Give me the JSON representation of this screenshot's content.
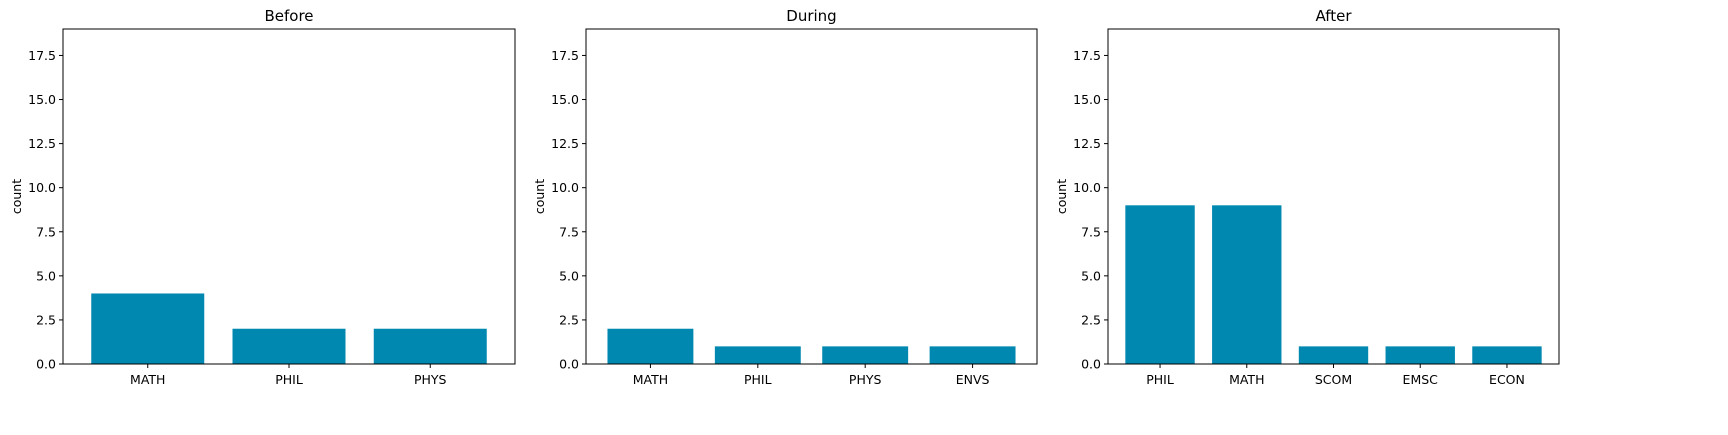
{
  "chart_data": [
    {
      "type": "bar",
      "title": "Before",
      "xlabel": "",
      "ylabel": "count",
      "categories": [
        "MATH",
        "PHIL",
        "PHYS"
      ],
      "values": [
        4,
        2,
        2
      ],
      "ylim": [
        0,
        19
      ],
      "yticks": [
        "0.0",
        "2.5",
        "5.0",
        "7.5",
        "10.0",
        "12.5",
        "15.0",
        "17.5"
      ],
      "grid": false,
      "bar_color": "#0088b0"
    },
    {
      "type": "bar",
      "title": "During",
      "xlabel": "",
      "ylabel": "count",
      "categories": [
        "MATH",
        "PHIL",
        "PHYS",
        "ENVS"
      ],
      "values": [
        2,
        1,
        1,
        1
      ],
      "ylim": [
        0,
        19
      ],
      "yticks": [
        "0.0",
        "2.5",
        "5.0",
        "7.5",
        "10.0",
        "12.5",
        "15.0",
        "17.5"
      ],
      "grid": false,
      "bar_color": "#0088b0"
    },
    {
      "type": "bar",
      "title": "After",
      "xlabel": "",
      "ylabel": "count",
      "categories": [
        "PHIL",
        "MATH",
        "SCOM",
        "EMSC",
        "ECON"
      ],
      "values": [
        9,
        9,
        1,
        1,
        1
      ],
      "ylim": [
        0,
        19
      ],
      "yticks": [
        "0.0",
        "2.5",
        "5.0",
        "7.5",
        "10.0",
        "12.5",
        "15.0",
        "17.5"
      ],
      "grid": false,
      "bar_color": "#0088b0"
    }
  ]
}
